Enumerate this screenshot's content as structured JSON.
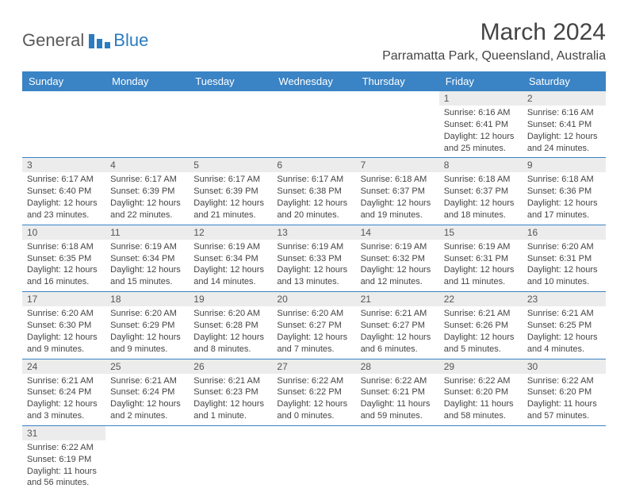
{
  "logo": {
    "part1": "General",
    "part2": "Blue"
  },
  "title": "March 2024",
  "location": "Parramatta Park, Queensland, Australia",
  "colors": {
    "header_bg": "#3a83c5",
    "header_text": "#ffffff",
    "daynum_bg": "#ececec",
    "row_border": "#3a83c5",
    "logo_gray": "#5a5a5a",
    "logo_blue": "#2b7bbf"
  },
  "weekdays": [
    "Sunday",
    "Monday",
    "Tuesday",
    "Wednesday",
    "Thursday",
    "Friday",
    "Saturday"
  ],
  "weeks": [
    [
      null,
      null,
      null,
      null,
      null,
      {
        "d": "1",
        "sr": "Sunrise: 6:16 AM",
        "ss": "Sunset: 6:41 PM",
        "dl": "Daylight: 12 hours and 25 minutes."
      },
      {
        "d": "2",
        "sr": "Sunrise: 6:16 AM",
        "ss": "Sunset: 6:41 PM",
        "dl": "Daylight: 12 hours and 24 minutes."
      }
    ],
    [
      {
        "d": "3",
        "sr": "Sunrise: 6:17 AM",
        "ss": "Sunset: 6:40 PM",
        "dl": "Daylight: 12 hours and 23 minutes."
      },
      {
        "d": "4",
        "sr": "Sunrise: 6:17 AM",
        "ss": "Sunset: 6:39 PM",
        "dl": "Daylight: 12 hours and 22 minutes."
      },
      {
        "d": "5",
        "sr": "Sunrise: 6:17 AM",
        "ss": "Sunset: 6:39 PM",
        "dl": "Daylight: 12 hours and 21 minutes."
      },
      {
        "d": "6",
        "sr": "Sunrise: 6:17 AM",
        "ss": "Sunset: 6:38 PM",
        "dl": "Daylight: 12 hours and 20 minutes."
      },
      {
        "d": "7",
        "sr": "Sunrise: 6:18 AM",
        "ss": "Sunset: 6:37 PM",
        "dl": "Daylight: 12 hours and 19 minutes."
      },
      {
        "d": "8",
        "sr": "Sunrise: 6:18 AM",
        "ss": "Sunset: 6:37 PM",
        "dl": "Daylight: 12 hours and 18 minutes."
      },
      {
        "d": "9",
        "sr": "Sunrise: 6:18 AM",
        "ss": "Sunset: 6:36 PM",
        "dl": "Daylight: 12 hours and 17 minutes."
      }
    ],
    [
      {
        "d": "10",
        "sr": "Sunrise: 6:18 AM",
        "ss": "Sunset: 6:35 PM",
        "dl": "Daylight: 12 hours and 16 minutes."
      },
      {
        "d": "11",
        "sr": "Sunrise: 6:19 AM",
        "ss": "Sunset: 6:34 PM",
        "dl": "Daylight: 12 hours and 15 minutes."
      },
      {
        "d": "12",
        "sr": "Sunrise: 6:19 AM",
        "ss": "Sunset: 6:34 PM",
        "dl": "Daylight: 12 hours and 14 minutes."
      },
      {
        "d": "13",
        "sr": "Sunrise: 6:19 AM",
        "ss": "Sunset: 6:33 PM",
        "dl": "Daylight: 12 hours and 13 minutes."
      },
      {
        "d": "14",
        "sr": "Sunrise: 6:19 AM",
        "ss": "Sunset: 6:32 PM",
        "dl": "Daylight: 12 hours and 12 minutes."
      },
      {
        "d": "15",
        "sr": "Sunrise: 6:19 AM",
        "ss": "Sunset: 6:31 PM",
        "dl": "Daylight: 12 hours and 11 minutes."
      },
      {
        "d": "16",
        "sr": "Sunrise: 6:20 AM",
        "ss": "Sunset: 6:31 PM",
        "dl": "Daylight: 12 hours and 10 minutes."
      }
    ],
    [
      {
        "d": "17",
        "sr": "Sunrise: 6:20 AM",
        "ss": "Sunset: 6:30 PM",
        "dl": "Daylight: 12 hours and 9 minutes."
      },
      {
        "d": "18",
        "sr": "Sunrise: 6:20 AM",
        "ss": "Sunset: 6:29 PM",
        "dl": "Daylight: 12 hours and 9 minutes."
      },
      {
        "d": "19",
        "sr": "Sunrise: 6:20 AM",
        "ss": "Sunset: 6:28 PM",
        "dl": "Daylight: 12 hours and 8 minutes."
      },
      {
        "d": "20",
        "sr": "Sunrise: 6:20 AM",
        "ss": "Sunset: 6:27 PM",
        "dl": "Daylight: 12 hours and 7 minutes."
      },
      {
        "d": "21",
        "sr": "Sunrise: 6:21 AM",
        "ss": "Sunset: 6:27 PM",
        "dl": "Daylight: 12 hours and 6 minutes."
      },
      {
        "d": "22",
        "sr": "Sunrise: 6:21 AM",
        "ss": "Sunset: 6:26 PM",
        "dl": "Daylight: 12 hours and 5 minutes."
      },
      {
        "d": "23",
        "sr": "Sunrise: 6:21 AM",
        "ss": "Sunset: 6:25 PM",
        "dl": "Daylight: 12 hours and 4 minutes."
      }
    ],
    [
      {
        "d": "24",
        "sr": "Sunrise: 6:21 AM",
        "ss": "Sunset: 6:24 PM",
        "dl": "Daylight: 12 hours and 3 minutes."
      },
      {
        "d": "25",
        "sr": "Sunrise: 6:21 AM",
        "ss": "Sunset: 6:24 PM",
        "dl": "Daylight: 12 hours and 2 minutes."
      },
      {
        "d": "26",
        "sr": "Sunrise: 6:21 AM",
        "ss": "Sunset: 6:23 PM",
        "dl": "Daylight: 12 hours and 1 minute."
      },
      {
        "d": "27",
        "sr": "Sunrise: 6:22 AM",
        "ss": "Sunset: 6:22 PM",
        "dl": "Daylight: 12 hours and 0 minutes."
      },
      {
        "d": "28",
        "sr": "Sunrise: 6:22 AM",
        "ss": "Sunset: 6:21 PM",
        "dl": "Daylight: 11 hours and 59 minutes."
      },
      {
        "d": "29",
        "sr": "Sunrise: 6:22 AM",
        "ss": "Sunset: 6:20 PM",
        "dl": "Daylight: 11 hours and 58 minutes."
      },
      {
        "d": "30",
        "sr": "Sunrise: 6:22 AM",
        "ss": "Sunset: 6:20 PM",
        "dl": "Daylight: 11 hours and 57 minutes."
      }
    ],
    [
      {
        "d": "31",
        "sr": "Sunrise: 6:22 AM",
        "ss": "Sunset: 6:19 PM",
        "dl": "Daylight: 11 hours and 56 minutes."
      },
      null,
      null,
      null,
      null,
      null,
      null
    ]
  ]
}
